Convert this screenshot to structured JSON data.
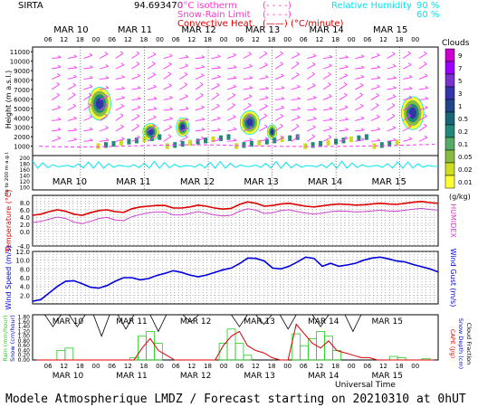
{
  "header": {
    "station": "SIRTA",
    "coords": "94.693470",
    "legend_left": [
      {
        "label": "0°C isotherm",
        "sym": "(- - - -)",
        "color": "#ff33cc"
      },
      {
        "label": "Snow-Rain Limit",
        "sym": "(- - - -)",
        "color": "#ff33cc"
      },
      {
        "label": "Convective Heat.",
        "sym": "(——) (°C/minute)",
        "color": "#dd0000"
      }
    ],
    "legend_right": {
      "label": "Relative Humidity",
      "v1": "90 %",
      "v2": "60 %",
      "color": "#00e5ee"
    }
  },
  "footer": {
    "title": "Modele Atmospherique LMDZ / Forecast starting on 20210310 at 0hUT"
  },
  "colors": {
    "frame": "#000000",
    "wind": "#ff33ff",
    "cyan": "#00e5ee",
    "temp": "#dd0000",
    "humidex": "#cc44cc",
    "speed": "#0000dd",
    "cape": "#dd0000",
    "snow_depth": "#000000",
    "rain": "#22cc22"
  },
  "chart_data": [
    {
      "type": "heatmap",
      "name": "Clouds panel",
      "ylabel": "Height (m a.s.l.)",
      "ylabel_low": "Up to 200 m a.g.l.",
      "yticks": [
        "11000",
        "10000",
        "9000",
        "8000",
        "7000",
        "6000",
        "5000",
        "4000",
        "3000",
        "2000",
        "1000"
      ],
      "yticks_low": [
        "200",
        "180",
        "160",
        "140",
        "120",
        "100"
      ],
      "days": [
        "MAR 10",
        "MAR 11",
        "MAR 12",
        "MAR 13",
        "MAR 14",
        "MAR 15"
      ],
      "hours": [
        "06",
        "12",
        "18",
        "00"
      ],
      "colorbar_title": "Clouds",
      "colorbar_labels": [
        "9",
        "7",
        "5",
        "3",
        "1",
        "0.5",
        "0.2",
        "0.1",
        "0.05",
        "0.02",
        "0.01"
      ],
      "colorbar_colors": [
        "#cc00cc",
        "#9900ff",
        "#7733cc",
        "#3333aa",
        "#224488",
        "#1a6677",
        "#228877",
        "#55aa66",
        "#88bb44",
        "#ccdd22",
        "#ffff33"
      ],
      "colorbar_unit": "(g/kg)",
      "cloud_blobs": [
        {
          "t": 1.05,
          "h": 5500,
          "w": 0.35,
          "ht": 3500
        },
        {
          "t": 1.85,
          "h": 2500,
          "w": 0.25,
          "ht": 1800
        },
        {
          "t": 2.35,
          "h": 3000,
          "w": 0.2,
          "ht": 2000
        },
        {
          "t": 3.4,
          "h": 3500,
          "w": 0.3,
          "ht": 2500
        },
        {
          "t": 3.75,
          "h": 2500,
          "w": 0.15,
          "ht": 1500
        },
        {
          "t": 5.95,
          "h": 4500,
          "w": 0.35,
          "ht": 3500
        }
      ]
    },
    {
      "type": "line",
      "name": "Temperature panel",
      "ylabel": "Temperature (°C)",
      "ylabel_right": "HUMIDEX",
      "yticks": [
        "8.0",
        "6.0",
        "4.0",
        "2.0",
        "0.0",
        "-4.0"
      ],
      "ylim": [
        -4,
        10
      ],
      "series": [
        {
          "name": "Temperature",
          "values": [
            4.5,
            4.8,
            5.5,
            6.0,
            5.6,
            4.8,
            4.5,
            5.2,
            5.8,
            6.0,
            5.5,
            5.3,
            6.3,
            6.8,
            7.0,
            7.2,
            7.2,
            6.5,
            6.5,
            6.8,
            7.3,
            7.0,
            6.5,
            6.2,
            6.4,
            7.5,
            8.2,
            7.8,
            7.0,
            7.2,
            7.6,
            7.8,
            7.4,
            7.0,
            6.8,
            7.1,
            7.4,
            7.6,
            7.5,
            7.3,
            7.4,
            7.6,
            7.8,
            7.6,
            7.5,
            7.8,
            8.1,
            8.3,
            8.0,
            7.8
          ]
        },
        {
          "name": "HUMIDEX",
          "values": [
            2.5,
            2.8,
            3.4,
            4.0,
            3.6,
            2.6,
            2.2,
            2.8,
            3.6,
            3.9,
            3.2,
            3.0,
            4.1,
            4.7,
            5.2,
            5.4,
            5.4,
            4.6,
            4.6,
            5.0,
            5.5,
            5.1,
            4.6,
            4.3,
            4.5,
            5.6,
            6.3,
            5.9,
            5.0,
            5.2,
            5.8,
            6.0,
            5.5,
            5.1,
            4.8,
            5.1,
            5.5,
            5.7,
            5.6,
            5.4,
            5.5,
            5.7,
            5.9,
            5.7,
            5.6,
            5.9,
            6.2,
            6.4,
            6.1,
            5.9
          ]
        }
      ]
    },
    {
      "type": "line",
      "name": "Wind panel",
      "ylabel": "Wind Speed (m/s)",
      "ylabel_right": "Wind Gust (m/s)",
      "yticks": [
        "12.0",
        "10.0",
        "8.0",
        "6.0",
        "4.0",
        "2.0"
      ],
      "ylim": [
        0,
        12
      ],
      "series": [
        {
          "name": "Wind Speed",
          "values": [
            0.6,
            1.0,
            2.5,
            4.0,
            5.2,
            5.3,
            4.6,
            3.8,
            3.6,
            4.2,
            5.2,
            6.0,
            6.0,
            5.5,
            5.8,
            6.5,
            7.0,
            7.6,
            7.2,
            6.6,
            6.2,
            6.6,
            7.2,
            7.8,
            8.2,
            9.2,
            10.5,
            10.4,
            9.8,
            8.2,
            8.0,
            8.6,
            9.6,
            10.7,
            10.4,
            8.6,
            9.3,
            8.6,
            8.9,
            9.3,
            10.0,
            10.5,
            10.7,
            10.3,
            9.8,
            9.6,
            9.0,
            8.5,
            8.0,
            7.3
          ]
        }
      ]
    },
    {
      "type": "bar",
      "name": "Precipitation panel",
      "ylabel": "Rain (mm/hour)",
      "ylabel2": "Snow (cm/hour)",
      "ylabel_right": "CAPE (J/g)",
      "ylabel_right2": "Snow Depth (cm)",
      "ylabel_right3": "Cloud Fraction",
      "yticks": [
        "1.80",
        "1.60",
        "1.40",
        "1.20",
        "1.00",
        "0.80",
        "0.60",
        "0.40",
        "0.20",
        "0.00"
      ],
      "ylim": [
        0,
        1.9
      ],
      "xlabel": "Universal Time",
      "rain": [
        0,
        0,
        0,
        0.4,
        0.5,
        0,
        0,
        0,
        0,
        0,
        0,
        0,
        0.1,
        1.0,
        1.2,
        0.7,
        0,
        0,
        0,
        0,
        0,
        0,
        0,
        0.7,
        1.3,
        0.7,
        0.2,
        0,
        0,
        0,
        0,
        0,
        1.1,
        0.6,
        0.9,
        1.2,
        1.0,
        0.4,
        0,
        0,
        0,
        0,
        0,
        0,
        0.15,
        0.1,
        0,
        0,
        0.05,
        0
      ],
      "cape": [
        0,
        0,
        0,
        0,
        0,
        0,
        0,
        0,
        0,
        0,
        0,
        0,
        0,
        0.5,
        0.9,
        0.4,
        0.2,
        0,
        0,
        0,
        0,
        0,
        0,
        0.6,
        1.0,
        1.2,
        0.6,
        0.4,
        0.3,
        0.1,
        0,
        0,
        1.5,
        1.1,
        0.7,
        0.5,
        0.8,
        0.4,
        0.3,
        0.2,
        0.1,
        0.1,
        0,
        0,
        0,
        0,
        0,
        0,
        0,
        0
      ],
      "cloud_fraction": [
        1.9,
        1.9,
        1.4,
        1.9,
        1.9,
        1.4,
        1.9,
        1.9,
        1.0,
        1.9,
        1.9,
        1.3,
        1.9,
        1.9,
        1.9,
        1.2,
        1.9,
        1.9,
        1.9,
        1.6,
        1.9,
        1.9,
        1.9,
        1.9,
        1.9,
        1.4,
        1.9,
        1.9,
        1.5,
        1.9,
        1.9,
        1.3,
        1.9,
        1.9,
        1.9,
        1.4,
        1.9,
        1.9,
        1.9,
        1.2,
        1.9,
        1.9,
        1.9,
        1.9,
        1.9,
        1.9,
        1.9,
        1.9,
        1.9,
        1.9
      ]
    }
  ]
}
